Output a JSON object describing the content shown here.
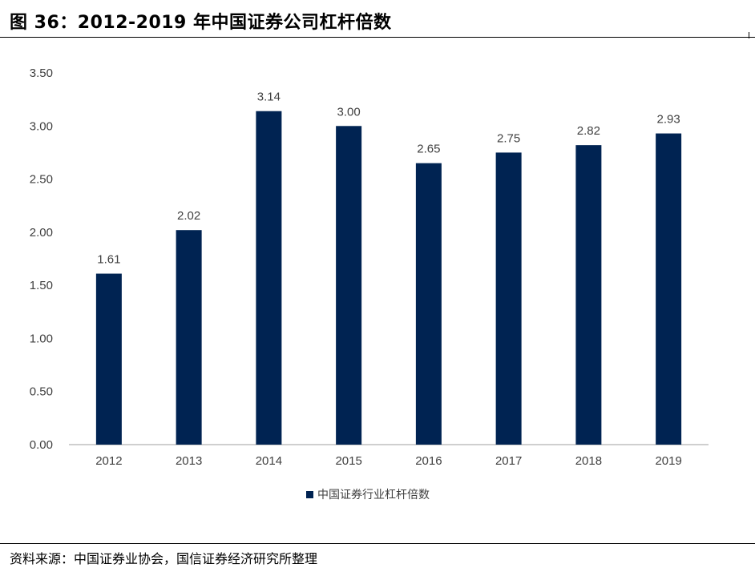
{
  "figure": {
    "title": "图 36：2012-2019 年中国证券公司杠杆倍数",
    "source": "资料来源：中国证券业协会，国信证券经济研究所整理"
  },
  "colors": {
    "bar": "#002352",
    "axis": "#bfbfbf",
    "text": "#404040"
  },
  "chart_data": {
    "type": "bar",
    "categories": [
      "2012",
      "2013",
      "2014",
      "2015",
      "2016",
      "2017",
      "2018",
      "2019"
    ],
    "series": [
      {
        "name": "中国证券行业杠杆倍数",
        "values": [
          1.61,
          2.02,
          3.14,
          3.0,
          2.65,
          2.75,
          2.82,
          2.93
        ]
      }
    ],
    "data_labels": [
      "1.61",
      "2.02",
      "3.14",
      "3.00",
      "2.65",
      "2.75",
      "2.82",
      "2.93"
    ],
    "y_ticks": [
      "0.00",
      "0.50",
      "1.00",
      "1.50",
      "2.00",
      "2.50",
      "3.00",
      "3.50"
    ],
    "ylim": [
      0,
      3.5
    ],
    "grid": false,
    "legend_position": "bottom-center"
  }
}
